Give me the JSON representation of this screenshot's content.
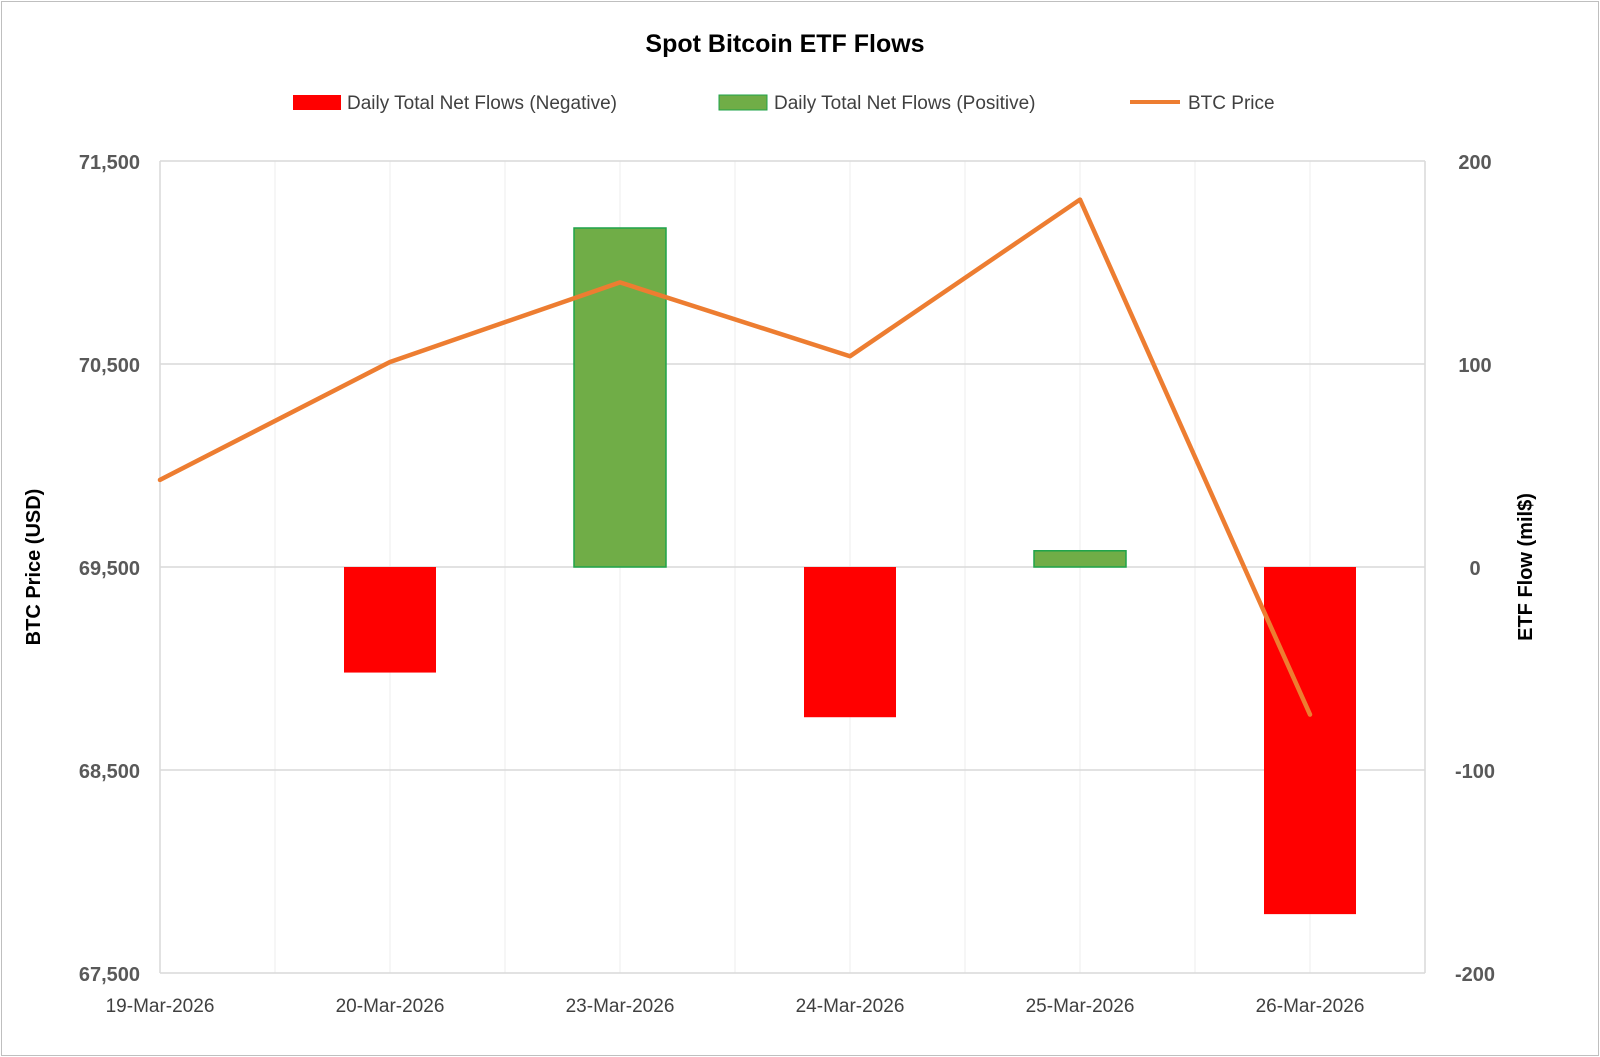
{
  "chart_data": {
    "type": "bar+line",
    "title": "Spot Bitcoin ETF Flows",
    "categories": [
      "19-Mar-2026",
      "20-Mar-2026",
      "23-Mar-2026",
      "24-Mar-2026",
      "25-Mar-2026",
      "26-Mar-2026"
    ],
    "legend": [
      "Daily Total Net Flows (Negative)",
      "Daily Total Net Flows (Positive)",
      "BTC Price"
    ],
    "legend_position": "top",
    "series": [
      {
        "name": "Daily Total Net Flows",
        "axis": "right",
        "type": "bar",
        "values": [
          null,
          -52,
          167,
          -74,
          8,
          -171
        ]
      },
      {
        "name": "BTC Price",
        "axis": "left",
        "type": "line",
        "values": [
          69929,
          70510,
          70902,
          70538,
          71310,
          68773
        ]
      }
    ],
    "ylabel_left": "BTC Price (USD)",
    "ylabel_right": "ETF Flow (mil$)",
    "ylim_left": [
      67500,
      71500
    ],
    "ylim_right": [
      -200,
      200
    ],
    "yticks_left": [
      "71,500",
      "70,500",
      "69,500",
      "68,500",
      "67,500"
    ],
    "yticks_right": [
      "200",
      "100",
      "0",
      "-100",
      "-200"
    ],
    "grid": true,
    "colors": {
      "negative": "#ff0000",
      "positive": "#70ad47",
      "positive_border": "#1fa34a",
      "line": "#ed7d31",
      "grid": "#d9d9d9",
      "minor_grid": "#ededed",
      "text": "#595959"
    }
  }
}
